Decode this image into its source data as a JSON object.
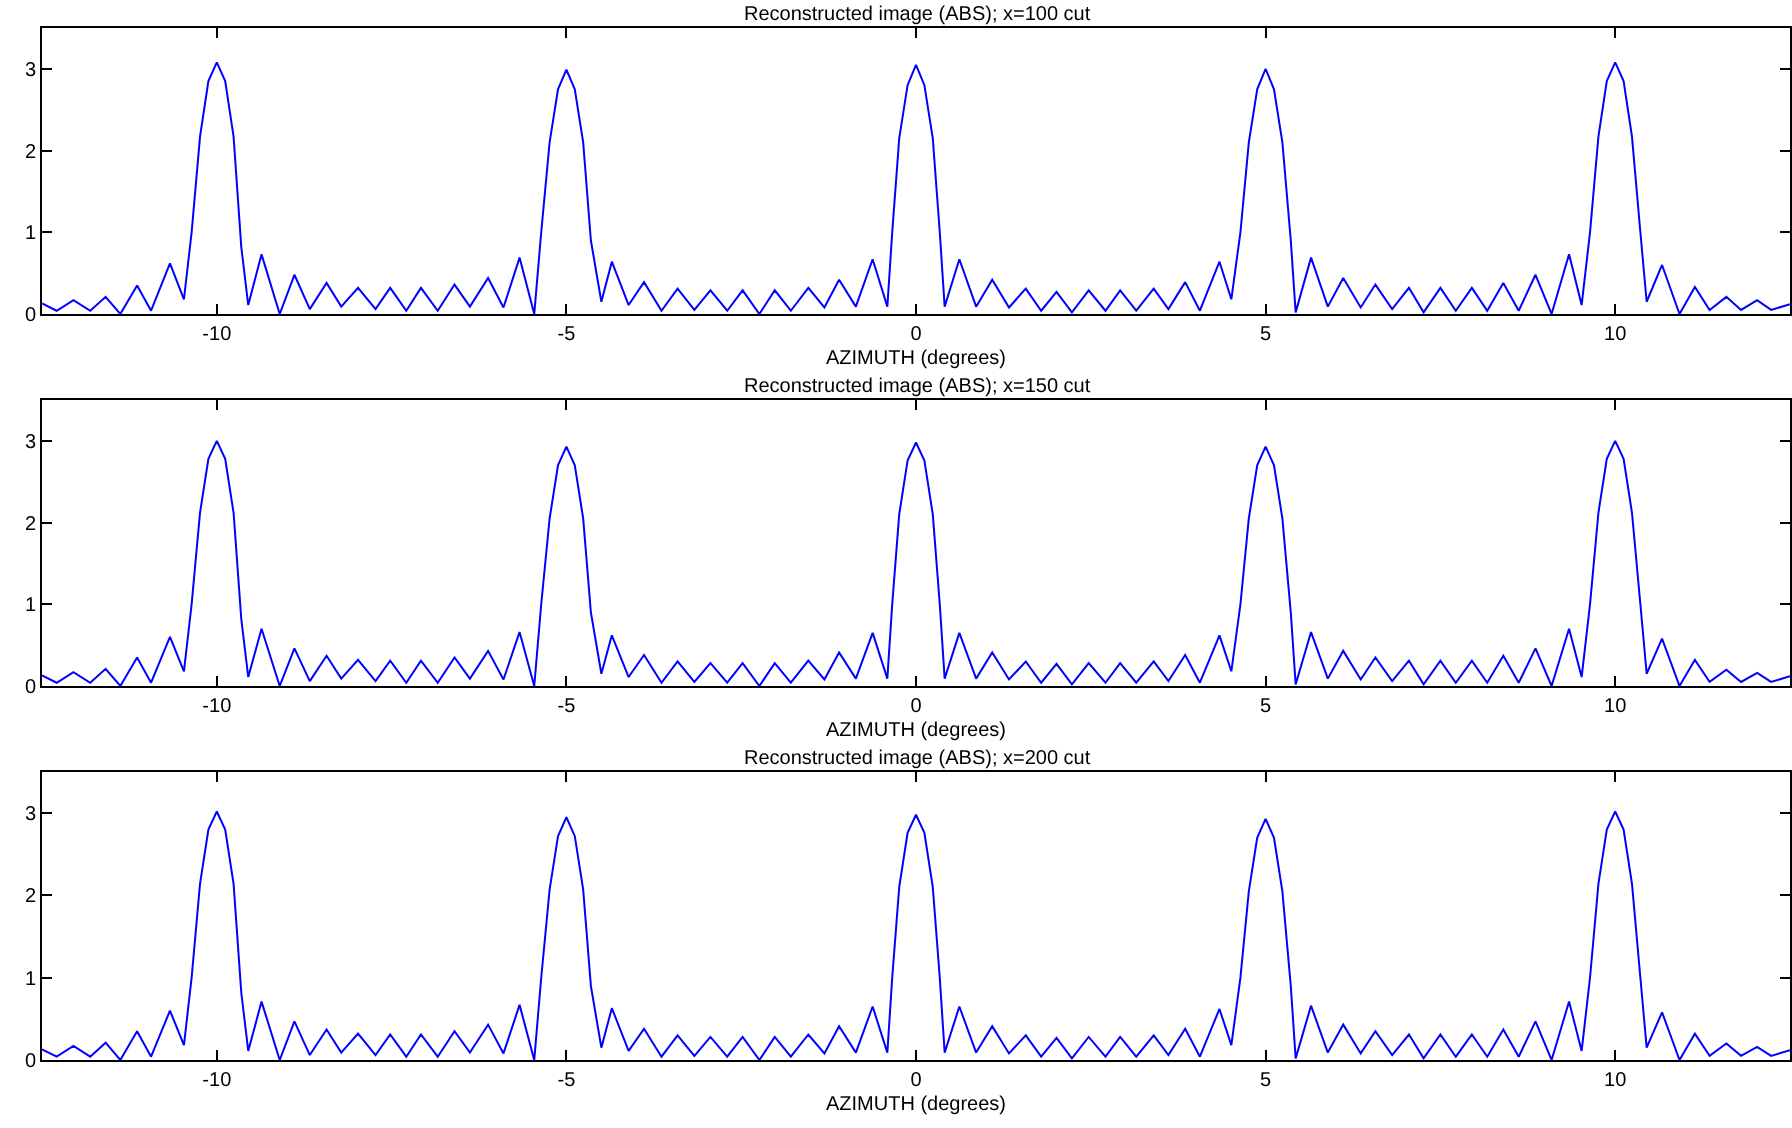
{
  "chart_data": [
    {
      "type": "line",
      "title": "Reconstructed image (ABS); x=100 cut",
      "xlabel": "AZIMUTH (degrees)",
      "xlim": [
        -12.5,
        12.5
      ],
      "ylim": [
        0,
        3.5
      ],
      "xticks": [
        -10,
        -5,
        0,
        5,
        10
      ],
      "yticks": [
        0,
        1,
        2,
        3
      ],
      "grid": false,
      "line_style": "solid",
      "x": [
        -12.5,
        -12.29,
        -12.05,
        -11.81,
        -11.59,
        -11.38,
        -11.14,
        -10.94,
        -10.67,
        -10.47,
        -10.36,
        -10.24,
        -10.12,
        -10,
        -9.88,
        -9.76,
        -9.65,
        -9.55,
        -9.36,
        -9.1,
        -8.89,
        -8.67,
        -8.43,
        -8.22,
        -7.98,
        -7.73,
        -7.52,
        -7.29,
        -7.08,
        -6.84,
        -6.6,
        -6.38,
        -6.12,
        -5.9,
        -5.67,
        -5.46,
        -5.36,
        -5.24,
        -5.12,
        -5,
        -4.88,
        -4.76,
        -4.65,
        -4.5,
        -4.35,
        -4.11,
        -3.89,
        -3.64,
        -3.41,
        -3.17,
        -2.94,
        -2.7,
        -2.48,
        -2.24,
        -2.02,
        -1.79,
        -1.54,
        -1.31,
        -1.1,
        -0.86,
        -0.62,
        -0.41,
        -0.34,
        -0.24,
        -0.12,
        0,
        0.12,
        0.24,
        0.34,
        0.41,
        0.62,
        0.86,
        1.09,
        1.33,
        1.57,
        1.79,
        2.01,
        2.23,
        2.47,
        2.71,
        2.92,
        3.15,
        3.4,
        3.61,
        3.85,
        4.06,
        4.34,
        4.51,
        4.64,
        4.76,
        4.88,
        5,
        5.12,
        5.24,
        5.36,
        5.43,
        5.65,
        5.89,
        6.11,
        6.36,
        6.57,
        6.81,
        7.05,
        7.26,
        7.5,
        7.72,
        7.95,
        8.17,
        8.4,
        8.62,
        8.86,
        9.09,
        9.34,
        9.52,
        9.64,
        9.76,
        9.88,
        10,
        10.12,
        10.24,
        10.36,
        10.45,
        10.67,
        10.92,
        11.14,
        11.35,
        11.59,
        11.8,
        12.03,
        12.23,
        12.5
      ],
      "series": [
        {
          "color": "#0000ff",
          "values": [
            0.13,
            0.04,
            0.17,
            0.04,
            0.21,
            0.0,
            0.35,
            0.04,
            0.62,
            0.18,
            1.0,
            2.17,
            2.85,
            3.08,
            2.85,
            2.17,
            0.82,
            0.11,
            0.73,
            0,
            0.48,
            0.06,
            0.38,
            0.09,
            0.32,
            0.06,
            0.32,
            0.04,
            0.32,
            0.04,
            0.36,
            0.09,
            0.44,
            0.08,
            0.69,
            0,
            1.0,
            2.1,
            2.75,
            2.99,
            2.75,
            2.1,
            0.9,
            0.15,
            0.64,
            0.11,
            0.39,
            0.04,
            0.31,
            0.05,
            0.29,
            0.04,
            0.29,
            0,
            0.29,
            0.04,
            0.32,
            0.08,
            0.42,
            0.09,
            0.67,
            0.09,
            1.0,
            2.15,
            2.8,
            3.05,
            2.8,
            2.15,
            1.0,
            0.09,
            0.67,
            0.09,
            0.42,
            0.08,
            0.31,
            0.04,
            0.27,
            0.02,
            0.29,
            0.04,
            0.29,
            0.04,
            0.31,
            0.06,
            0.39,
            0.04,
            0.64,
            0.18,
            1.0,
            2.1,
            2.75,
            3.0,
            2.75,
            2.1,
            0.9,
            0.02,
            0.69,
            0.09,
            0.44,
            0.08,
            0.36,
            0.06,
            0.32,
            0.02,
            0.32,
            0.04,
            0.32,
            0.04,
            0.38,
            0.04,
            0.48,
            0,
            0.73,
            0.11,
            1.0,
            2.17,
            2.85,
            3.08,
            2.85,
            2.17,
            1.0,
            0.15,
            0.6,
            0,
            0.33,
            0.05,
            0.21,
            0.05,
            0.17,
            0.05,
            0.12
          ]
        }
      ]
    },
    {
      "type": "line",
      "title": "Reconstructed image (ABS); x=150 cut",
      "xlabel": "AZIMUTH (degrees)",
      "xlim": [
        -12.5,
        12.5
      ],
      "ylim": [
        0,
        3.5
      ],
      "xticks": [
        -10,
        -5,
        0,
        5,
        10
      ],
      "yticks": [
        0,
        1,
        2,
        3
      ],
      "grid": false,
      "line_style": "solid",
      "x": [
        -12.5,
        -12.29,
        -12.05,
        -11.81,
        -11.59,
        -11.38,
        -11.14,
        -10.94,
        -10.67,
        -10.47,
        -10.36,
        -10.24,
        -10.12,
        -10,
        -9.88,
        -9.76,
        -9.65,
        -9.55,
        -9.36,
        -9.1,
        -8.89,
        -8.67,
        -8.43,
        -8.22,
        -7.98,
        -7.73,
        -7.52,
        -7.29,
        -7.08,
        -6.84,
        -6.6,
        -6.38,
        -6.12,
        -5.9,
        -5.67,
        -5.46,
        -5.36,
        -5.24,
        -5.12,
        -5,
        -4.88,
        -4.76,
        -4.65,
        -4.5,
        -4.35,
        -4.11,
        -3.89,
        -3.64,
        -3.41,
        -3.17,
        -2.94,
        -2.7,
        -2.48,
        -2.24,
        -2.02,
        -1.79,
        -1.54,
        -1.31,
        -1.1,
        -0.86,
        -0.62,
        -0.41,
        -0.34,
        -0.24,
        -0.12,
        0,
        0.12,
        0.24,
        0.34,
        0.41,
        0.62,
        0.86,
        1.09,
        1.33,
        1.57,
        1.79,
        2.01,
        2.23,
        2.47,
        2.71,
        2.92,
        3.15,
        3.4,
        3.61,
        3.85,
        4.06,
        4.34,
        4.51,
        4.64,
        4.76,
        4.88,
        5,
        5.12,
        5.24,
        5.36,
        5.43,
        5.65,
        5.89,
        6.11,
        6.36,
        6.57,
        6.81,
        7.05,
        7.26,
        7.5,
        7.72,
        7.95,
        8.17,
        8.4,
        8.62,
        8.86,
        9.09,
        9.34,
        9.52,
        9.64,
        9.76,
        9.88,
        10,
        10.12,
        10.24,
        10.36,
        10.45,
        10.67,
        10.92,
        11.14,
        11.35,
        11.59,
        11.8,
        12.03,
        12.23,
        12.5
      ],
      "series": [
        {
          "color": "#0000ff",
          "values": [
            0.13,
            0.04,
            0.17,
            0.04,
            0.21,
            0.0,
            0.35,
            0.04,
            0.6,
            0.18,
            1.0,
            2.12,
            2.78,
            3.0,
            2.78,
            2.12,
            0.82,
            0.11,
            0.7,
            0,
            0.46,
            0.06,
            0.37,
            0.09,
            0.32,
            0.06,
            0.31,
            0.04,
            0.31,
            0.04,
            0.35,
            0.09,
            0.43,
            0.08,
            0.66,
            0,
            1.0,
            2.05,
            2.7,
            2.93,
            2.7,
            2.05,
            0.9,
            0.15,
            0.62,
            0.11,
            0.38,
            0.04,
            0.3,
            0.05,
            0.28,
            0.04,
            0.28,
            0,
            0.28,
            0.04,
            0.31,
            0.08,
            0.41,
            0.09,
            0.65,
            0.09,
            1.0,
            2.1,
            2.76,
            2.98,
            2.76,
            2.1,
            1.0,
            0.09,
            0.65,
            0.09,
            0.41,
            0.08,
            0.3,
            0.04,
            0.27,
            0.02,
            0.28,
            0.04,
            0.28,
            0.04,
            0.3,
            0.06,
            0.38,
            0.04,
            0.62,
            0.18,
            1.0,
            2.05,
            2.7,
            2.93,
            2.7,
            2.05,
            0.9,
            0.02,
            0.66,
            0.09,
            0.43,
            0.08,
            0.35,
            0.06,
            0.31,
            0.02,
            0.31,
            0.04,
            0.31,
            0.04,
            0.37,
            0.04,
            0.46,
            0,
            0.7,
            0.11,
            1.0,
            2.12,
            2.78,
            3.0,
            2.78,
            2.12,
            1.0,
            0.15,
            0.58,
            0,
            0.32,
            0.05,
            0.2,
            0.05,
            0.16,
            0.05,
            0.12
          ]
        }
      ]
    },
    {
      "type": "line",
      "title": "Reconstructed image (ABS); x=200 cut",
      "xlabel": "AZIMUTH (degrees)",
      "xlim": [
        -12.5,
        12.5
      ],
      "ylim": [
        0,
        3.5
      ],
      "xticks": [
        -10,
        -5,
        0,
        5,
        10
      ],
      "yticks": [
        0,
        1,
        2,
        3
      ],
      "grid": false,
      "line_style": "solid",
      "x": [
        -12.5,
        -12.29,
        -12.05,
        -11.81,
        -11.59,
        -11.38,
        -11.14,
        -10.94,
        -10.67,
        -10.47,
        -10.36,
        -10.24,
        -10.12,
        -10,
        -9.88,
        -9.76,
        -9.65,
        -9.55,
        -9.36,
        -9.1,
        -8.89,
        -8.67,
        -8.43,
        -8.22,
        -7.98,
        -7.73,
        -7.52,
        -7.29,
        -7.08,
        -6.84,
        -6.6,
        -6.38,
        -6.12,
        -5.9,
        -5.67,
        -5.46,
        -5.36,
        -5.24,
        -5.12,
        -5,
        -4.88,
        -4.76,
        -4.65,
        -4.5,
        -4.35,
        -4.11,
        -3.89,
        -3.64,
        -3.41,
        -3.17,
        -2.94,
        -2.7,
        -2.48,
        -2.24,
        -2.02,
        -1.79,
        -1.54,
        -1.31,
        -1.1,
        -0.86,
        -0.62,
        -0.41,
        -0.34,
        -0.24,
        -0.12,
        0,
        0.12,
        0.24,
        0.34,
        0.41,
        0.62,
        0.86,
        1.09,
        1.33,
        1.57,
        1.79,
        2.01,
        2.23,
        2.47,
        2.71,
        2.92,
        3.15,
        3.4,
        3.61,
        3.85,
        4.06,
        4.34,
        4.51,
        4.64,
        4.76,
        4.88,
        5,
        5.12,
        5.24,
        5.36,
        5.43,
        5.65,
        5.89,
        6.11,
        6.36,
        6.57,
        6.81,
        7.05,
        7.26,
        7.5,
        7.72,
        7.95,
        8.17,
        8.4,
        8.62,
        8.86,
        9.09,
        9.34,
        9.52,
        9.64,
        9.76,
        9.88,
        10,
        10.12,
        10.24,
        10.36,
        10.45,
        10.67,
        10.92,
        11.14,
        11.35,
        11.59,
        11.8,
        12.03,
        12.23,
        12.5
      ],
      "series": [
        {
          "color": "#0000ff",
          "values": [
            0.13,
            0.04,
            0.17,
            0.04,
            0.21,
            0.0,
            0.35,
            0.04,
            0.6,
            0.18,
            1.0,
            2.14,
            2.8,
            3.02,
            2.8,
            2.14,
            0.82,
            0.11,
            0.71,
            0,
            0.47,
            0.06,
            0.37,
            0.09,
            0.32,
            0.06,
            0.31,
            0.04,
            0.31,
            0.04,
            0.35,
            0.09,
            0.43,
            0.08,
            0.67,
            0,
            1.0,
            2.07,
            2.72,
            2.95,
            2.72,
            2.07,
            0.9,
            0.15,
            0.63,
            0.11,
            0.38,
            0.04,
            0.3,
            0.05,
            0.28,
            0.04,
            0.28,
            0,
            0.28,
            0.04,
            0.31,
            0.08,
            0.41,
            0.09,
            0.65,
            0.09,
            1.0,
            2.1,
            2.76,
            2.98,
            2.76,
            2.1,
            1.0,
            0.09,
            0.65,
            0.09,
            0.41,
            0.08,
            0.3,
            0.04,
            0.27,
            0.02,
            0.28,
            0.04,
            0.28,
            0.04,
            0.3,
            0.06,
            0.38,
            0.04,
            0.62,
            0.18,
            1.0,
            2.05,
            2.7,
            2.93,
            2.7,
            2.05,
            0.9,
            0.02,
            0.66,
            0.09,
            0.43,
            0.08,
            0.35,
            0.06,
            0.31,
            0.02,
            0.31,
            0.04,
            0.31,
            0.04,
            0.37,
            0.04,
            0.47,
            0,
            0.71,
            0.11,
            1.0,
            2.14,
            2.8,
            3.02,
            2.8,
            2.14,
            1.0,
            0.15,
            0.58,
            0,
            0.32,
            0.05,
            0.2,
            0.05,
            0.16,
            0.05,
            0.12
          ]
        }
      ]
    }
  ]
}
